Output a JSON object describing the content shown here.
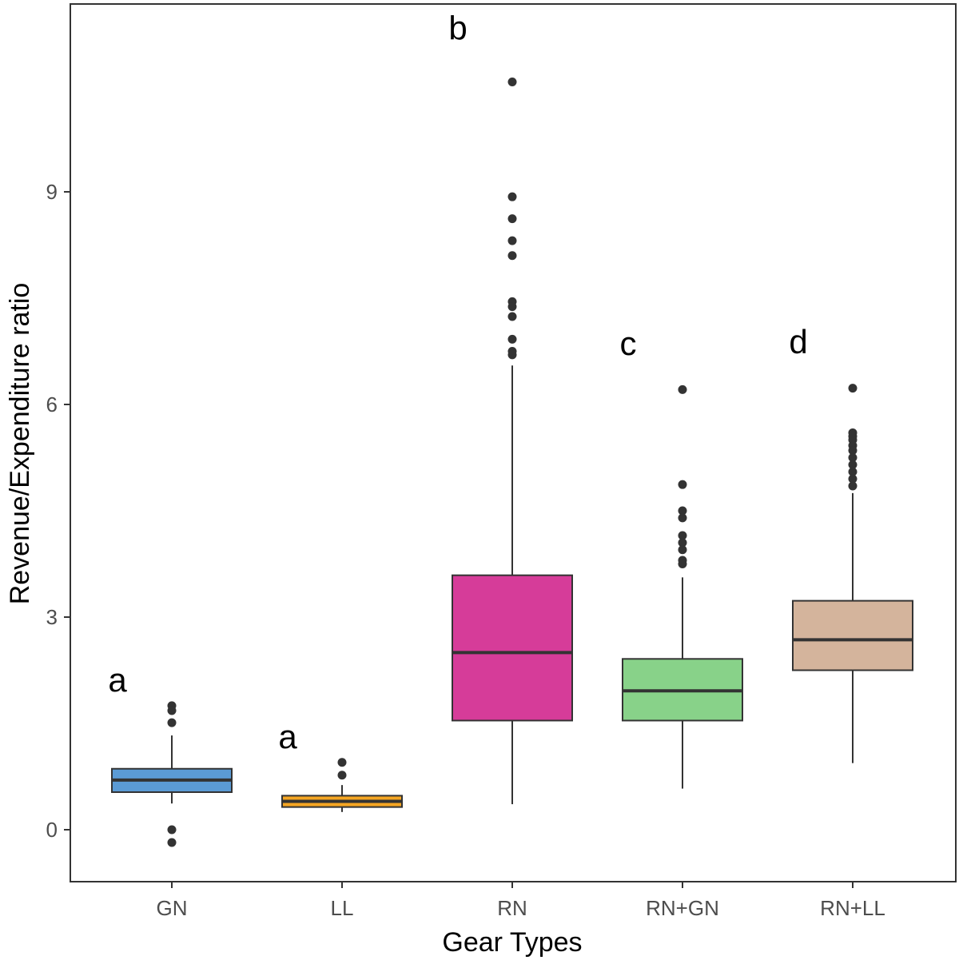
{
  "chart_data": {
    "type": "boxplot",
    "title": "",
    "xlabel": "Gear Types",
    "ylabel": "Revenue/Expenditure ratio",
    "ylim": [
      -0.65,
      11.35
    ],
    "yticks": [
      0,
      3,
      6,
      9
    ],
    "ytick_labels": [
      "0",
      "3",
      "6",
      "9"
    ],
    "grid": false,
    "legend": "none",
    "categories": [
      "GN",
      "LL",
      "RN",
      "RN+GN",
      "RN+LL"
    ],
    "boxes": [
      {
        "category": "GN",
        "color": "#5b9bd5",
        "whisker_low": 0.37,
        "q1": 0.53,
        "median": 0.7,
        "q3": 0.86,
        "whisker_high": 1.33,
        "outliers": [
          1.75,
          1.68,
          1.51,
          0.0,
          -0.18
        ],
        "letter": "a",
        "letter_y": 1.95
      },
      {
        "category": "LL",
        "color": "#f5a623",
        "whisker_low": 0.25,
        "q1": 0.32,
        "median": 0.4,
        "q3": 0.48,
        "whisker_high": 0.63,
        "outliers": [
          0.95,
          0.77
        ],
        "letter": "a",
        "letter_y": 1.15
      },
      {
        "category": "RN",
        "color": "#d63c99",
        "whisker_low": 0.36,
        "q1": 1.54,
        "median": 2.5,
        "q3": 3.59,
        "whisker_high": 6.55,
        "outliers": [
          10.55,
          8.93,
          8.62,
          8.31,
          8.1,
          7.45,
          7.38,
          7.24,
          6.92,
          6.75,
          6.7
        ],
        "letter": "b",
        "letter_y": 11.15
      },
      {
        "category": "RN+GN",
        "color": "#88d289",
        "whisker_low": 0.58,
        "q1": 1.54,
        "median": 1.96,
        "q3": 2.41,
        "whisker_high": 3.56,
        "outliers": [
          6.21,
          4.87,
          4.5,
          4.4,
          4.15,
          4.05,
          3.95,
          3.8,
          3.75
        ],
        "letter": "c",
        "letter_y": 6.7
      },
      {
        "category": "RN+LL",
        "color": "#d4b49c",
        "whisker_low": 0.94,
        "q1": 2.25,
        "median": 2.68,
        "q3": 3.23,
        "whisker_high": 4.75,
        "outliers": [
          6.23,
          5.6,
          5.55,
          5.5,
          5.42,
          5.35,
          5.25,
          5.15,
          5.05,
          4.95,
          4.85
        ],
        "letter": "d",
        "letter_y": 6.72
      }
    ],
    "style": {
      "outline_color": "#333333",
      "outlier_color": "#333333",
      "panel_border_color": "#333333",
      "background": "#ffffff"
    }
  }
}
